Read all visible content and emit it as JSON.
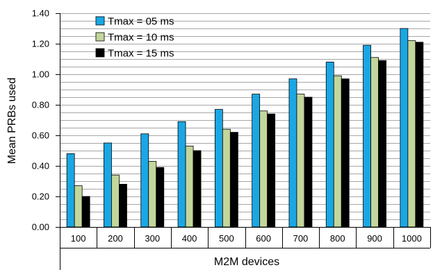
{
  "chart_data": {
    "type": "bar",
    "categories": [
      "100",
      "200",
      "300",
      "400",
      "500",
      "600",
      "700",
      "800",
      "900",
      "1000"
    ],
    "series": [
      {
        "name": "Tmax = 05 ms",
        "color": "#1aa7e4",
        "values": [
          0.48,
          0.55,
          0.61,
          0.69,
          0.77,
          0.87,
          0.97,
          1.08,
          1.19,
          1.3
        ]
      },
      {
        "name": "Tmax = 10 ms",
        "color": "#c3d69b",
        "values": [
          0.27,
          0.34,
          0.43,
          0.53,
          0.64,
          0.76,
          0.87,
          0.99,
          1.11,
          1.22
        ]
      },
      {
        "name": "Tmax = 15 ms",
        "color": "#000000",
        "values": [
          0.2,
          0.28,
          0.39,
          0.5,
          0.62,
          0.74,
          0.85,
          0.97,
          1.09,
          1.21
        ]
      }
    ],
    "xlabel": "M2M devices",
    "ylabel": "Mean PRBs used",
    "ylim": [
      0,
      1.4
    ],
    "yticks": [
      "0.00",
      "0.20",
      "0.40",
      "0.60",
      "0.80",
      "1.00",
      "1.20",
      "1.40"
    ],
    "grid": "horizontal",
    "legend_position": "top-left"
  }
}
